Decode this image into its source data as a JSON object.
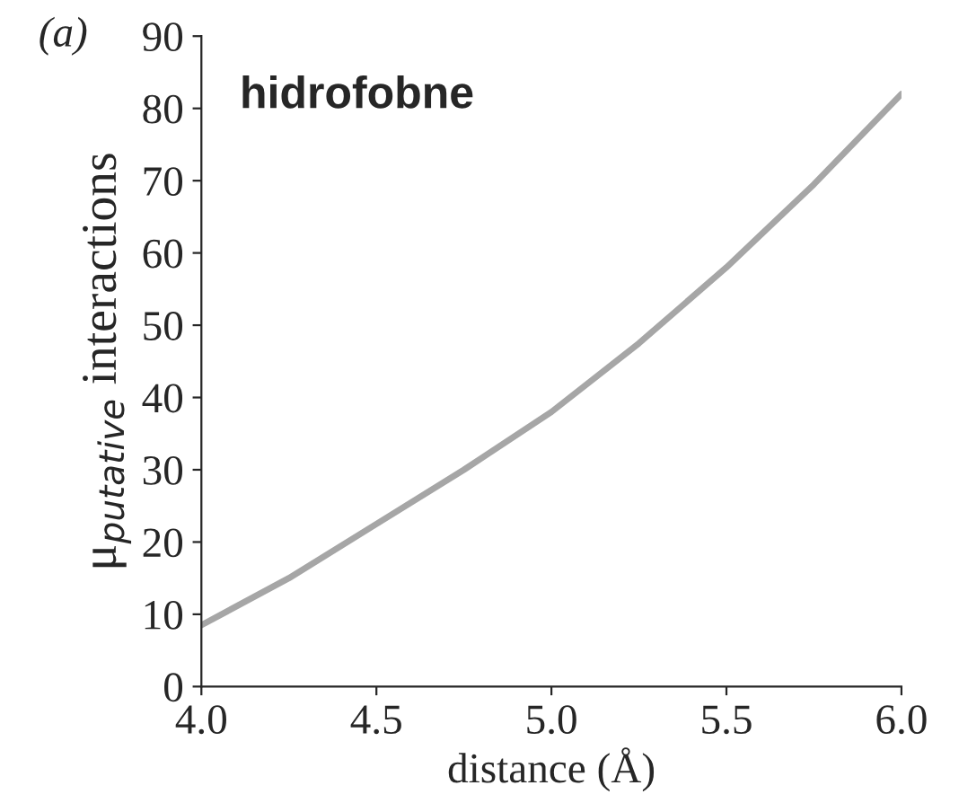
{
  "chart_data": {
    "type": "line",
    "xlabel": "distance (Å)",
    "ylabel": "μ$_{putative}$ interactions",
    "annotations": [
      "(a)",
      "hidrofobne"
    ],
    "x": [
      4.0,
      4.25,
      4.5,
      4.75,
      5.0,
      5.25,
      5.5,
      5.75,
      6.0
    ],
    "series": [
      {
        "color": "#a6a6a6",
        "values": [
          8.5,
          15,
          22.5,
          30,
          38,
          47.5,
          58,
          69.5,
          82
        ]
      }
    ],
    "xlim": [
      4.0,
      6.0
    ],
    "ylim": [
      0,
      90
    ],
    "xticks": [
      {
        "value": 4.0,
        "label": "4.0"
      },
      {
        "value": 4.5,
        "label": "4.5"
      },
      {
        "value": 5.0,
        "label": "5.0"
      },
      {
        "value": 5.5,
        "label": "5.5"
      },
      {
        "value": 6.0,
        "label": "6.0"
      }
    ],
    "yticks": [
      0,
      10,
      20,
      30,
      40,
      50,
      60,
      70,
      80,
      90
    ],
    "grid": false,
    "legend": false,
    "marker": "none",
    "line_style": "solid"
  }
}
